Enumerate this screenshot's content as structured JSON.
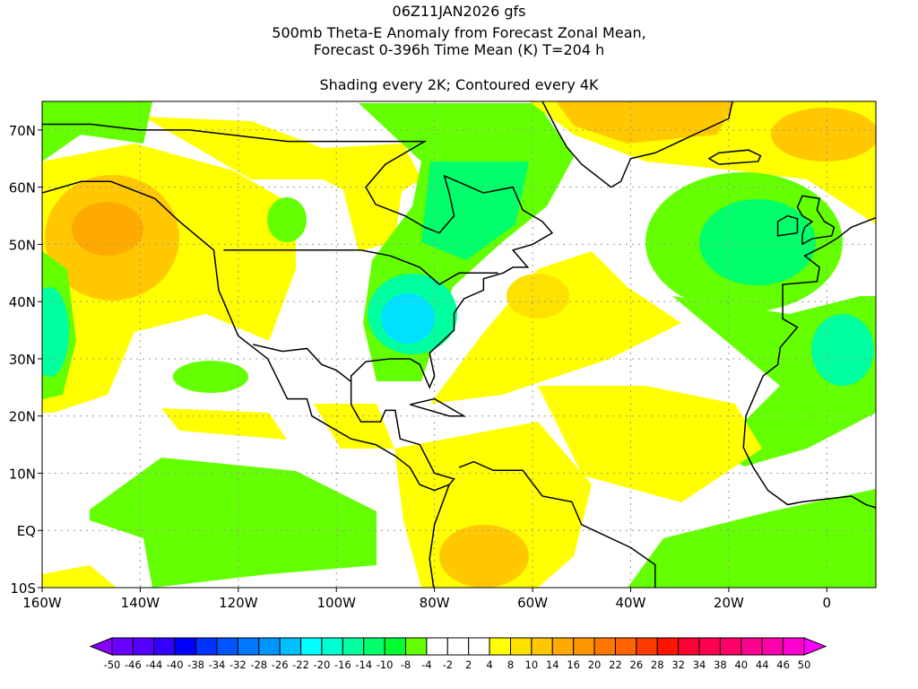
{
  "title": {
    "line1": "06Z11JAN2026 gfs",
    "line2": "500mb Theta-E Anomaly from Forecast Zonal Mean,",
    "line3": "Forecast 0-396h Time Mean (K) T=204 h",
    "line4": "Shading every 2K; Contoured every 4K"
  },
  "map": {
    "lat_labels": [
      "70N",
      "60N",
      "50N",
      "40N",
      "30N",
      "20N",
      "10N",
      "EQ",
      "10S"
    ],
    "lat_values": [
      70,
      60,
      50,
      40,
      30,
      20,
      10,
      0,
      -10
    ],
    "lon_labels": [
      "160W",
      "140W",
      "120W",
      "100W",
      "80W",
      "60W",
      "40W",
      "20W",
      "0"
    ],
    "lon_values": [
      -160,
      -140,
      -120,
      -100,
      -80,
      -60,
      -40,
      -20,
      0
    ],
    "lon_range": [
      -160,
      10
    ],
    "lat_range": [
      -10,
      75
    ]
  },
  "colorbar": {
    "labels": [
      "-50",
      "-46",
      "-44",
      "-40",
      "-38",
      "-34",
      "-32",
      "-28",
      "-26",
      "-22",
      "-20",
      "-16",
      "-14",
      "-10",
      "-8",
      "-4",
      "-2",
      "2",
      "4",
      "8",
      "10",
      "14",
      "16",
      "20",
      "22",
      "26",
      "28",
      "32",
      "34",
      "38",
      "40",
      "44",
      "46",
      "50"
    ],
    "colors": [
      "#6a00ff",
      "#5500ff",
      "#3300ff",
      "#0000ff",
      "#0033ff",
      "#0055ff",
      "#0078ff",
      "#0096ff",
      "#00bfff",
      "#00ffff",
      "#00ffd0",
      "#00ff9e",
      "#00ff6a",
      "#00ff30",
      "#64ff00",
      "#ffffff",
      "#ffffff",
      "#ffffff",
      "#ffff00",
      "#ffe100",
      "#ffc800",
      "#ffaa00",
      "#ff9600",
      "#ff7800",
      "#ff6400",
      "#ff3c00",
      "#ff1400",
      "#ff0032",
      "#ff0050",
      "#ff0068",
      "#ff0090",
      "#ff00aa",
      "#ff00d0"
    ],
    "low_arrow_color": "#8800ff",
    "high_arrow_color": "#ff00ff"
  }
}
